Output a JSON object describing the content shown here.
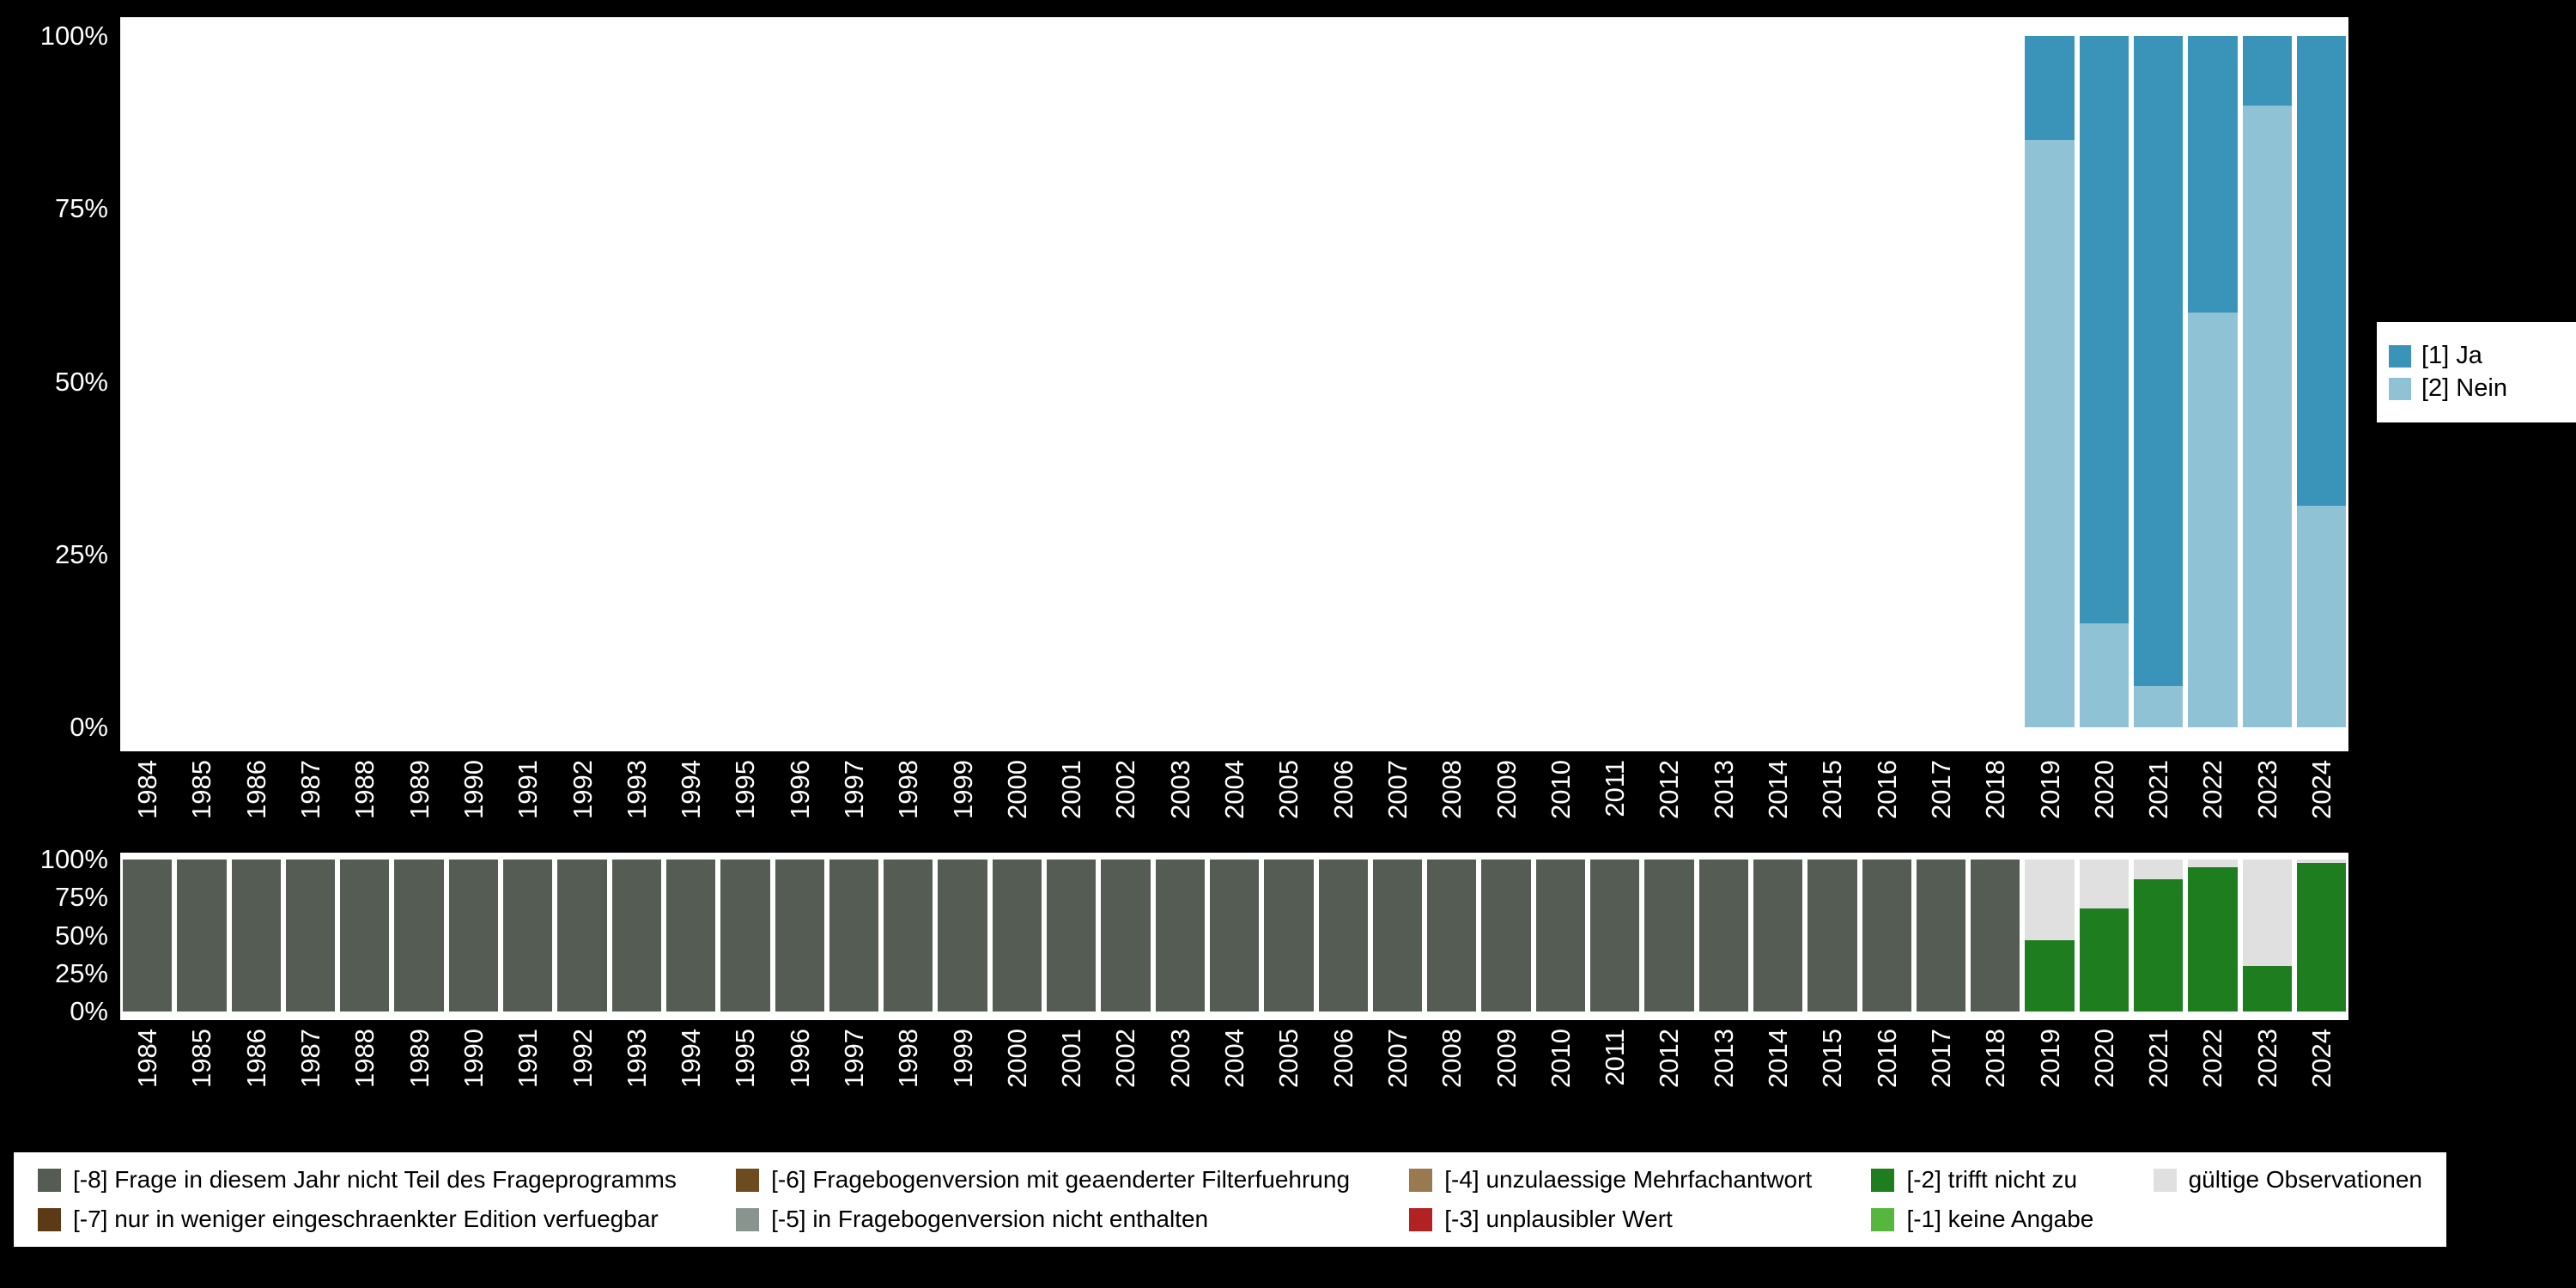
{
  "page": {
    "background": "#000000"
  },
  "chart_data": [
    {
      "id": "answers",
      "type": "bar",
      "stacked": true,
      "unit": "percent",
      "title": "",
      "xlabel": "",
      "ylabel": "",
      "ylim": [
        0,
        100
      ],
      "ytick_labels": [
        "100%",
        "75%",
        "50%",
        "25%",
        "0%"
      ],
      "grid": false,
      "legend_position": "right",
      "categories": [
        1984,
        1985,
        1986,
        1987,
        1988,
        1989,
        1990,
        1991,
        1992,
        1993,
        1994,
        1995,
        1996,
        1997,
        1998,
        1999,
        2000,
        2001,
        2002,
        2003,
        2004,
        2005,
        2006,
        2007,
        2008,
        2009,
        2010,
        2011,
        2012,
        2013,
        2014,
        2015,
        2016,
        2017,
        2018,
        2019,
        2020,
        2021,
        2022,
        2023,
        2024
      ],
      "series": [
        {
          "name": "[2] Nein",
          "color": "#8fc2d4",
          "values": [
            0,
            0,
            0,
            0,
            0,
            0,
            0,
            0,
            0,
            0,
            0,
            0,
            0,
            0,
            0,
            0,
            0,
            0,
            0,
            0,
            0,
            0,
            0,
            0,
            0,
            0,
            0,
            0,
            0,
            0,
            0,
            0,
            0,
            0,
            0,
            85,
            15,
            6,
            60,
            90,
            32
          ]
        },
        {
          "name": "[1] Ja",
          "color": "#3a93b8",
          "values": [
            0,
            0,
            0,
            0,
            0,
            0,
            0,
            0,
            0,
            0,
            0,
            0,
            0,
            0,
            0,
            0,
            0,
            0,
            0,
            0,
            0,
            0,
            0,
            0,
            0,
            0,
            0,
            0,
            0,
            0,
            0,
            0,
            0,
            0,
            0,
            15,
            85,
            94,
            40,
            10,
            68
          ]
        }
      ],
      "legend": [
        {
          "label": "[1] Ja",
          "color": "#3a93b8"
        },
        {
          "label": "[2] Nein",
          "color": "#8fc2d4"
        }
      ]
    },
    {
      "id": "missings",
      "type": "bar",
      "stacked": true,
      "unit": "percent",
      "title": "",
      "xlabel": "",
      "ylabel": "",
      "ylim": [
        0,
        100
      ],
      "ytick_labels": [
        "100%",
        "75%",
        "50%",
        "25%",
        "0%"
      ],
      "grid": false,
      "legend_position": "bottom",
      "categories": [
        1984,
        1985,
        1986,
        1987,
        1988,
        1989,
        1990,
        1991,
        1992,
        1993,
        1994,
        1995,
        1996,
        1997,
        1998,
        1999,
        2000,
        2001,
        2002,
        2003,
        2004,
        2005,
        2006,
        2007,
        2008,
        2009,
        2010,
        2011,
        2012,
        2013,
        2014,
        2015,
        2016,
        2017,
        2018,
        2019,
        2020,
        2021,
        2022,
        2023,
        2024
      ],
      "series": [
        {
          "name": "[-8] Frage in diesem Jahr nicht Teil des Frageprogramms",
          "color": "#545c54",
          "values": [
            100,
            100,
            100,
            100,
            100,
            100,
            100,
            100,
            100,
            100,
            100,
            100,
            100,
            100,
            100,
            100,
            100,
            100,
            100,
            100,
            100,
            100,
            100,
            100,
            100,
            100,
            100,
            100,
            100,
            100,
            100,
            100,
            100,
            100,
            100,
            0,
            0,
            0,
            0,
            0,
            0
          ]
        },
        {
          "name": "[-2] trifft nicht zu",
          "color": "#1e7d1e",
          "values": [
            0,
            0,
            0,
            0,
            0,
            0,
            0,
            0,
            0,
            0,
            0,
            0,
            0,
            0,
            0,
            0,
            0,
            0,
            0,
            0,
            0,
            0,
            0,
            0,
            0,
            0,
            0,
            0,
            0,
            0,
            0,
            0,
            0,
            0,
            0,
            47,
            68,
            87,
            95,
            30,
            98
          ]
        },
        {
          "name": "gültige Observationen",
          "color": "#e0e0e0",
          "values": [
            0,
            0,
            0,
            0,
            0,
            0,
            0,
            0,
            0,
            0,
            0,
            0,
            0,
            0,
            0,
            0,
            0,
            0,
            0,
            0,
            0,
            0,
            0,
            0,
            0,
            0,
            0,
            0,
            0,
            0,
            0,
            0,
            0,
            0,
            0,
            53,
            32,
            13,
            5,
            70,
            2
          ]
        }
      ],
      "legend": [
        {
          "label": "[-8] Frage in diesem Jahr nicht Teil des Frageprogramms",
          "color": "#545c54"
        },
        {
          "label": "[-6] Fragebogenversion mit geaenderter Filterfuehrung",
          "color": "#6e4a1f"
        },
        {
          "label": "[-4] unzulaessige Mehrfachantwort",
          "color": "#997950"
        },
        {
          "label": "[-2] trifft nicht zu",
          "color": "#1e7d1e"
        },
        {
          "label": "gültige Observationen",
          "color": "#e0e0e0"
        },
        {
          "label": "[-7] nur in weniger eingeschraenkter Edition verfuegbar",
          "color": "#5d3a16"
        },
        {
          "label": "[-5] in Fragebogenversion nicht enthalten",
          "color": "#8a948e"
        },
        {
          "label": "[-3] unplausibler Wert",
          "color": "#b22222"
        },
        {
          "label": "[-1] keine Angabe",
          "color": "#56b63e"
        }
      ]
    }
  ]
}
